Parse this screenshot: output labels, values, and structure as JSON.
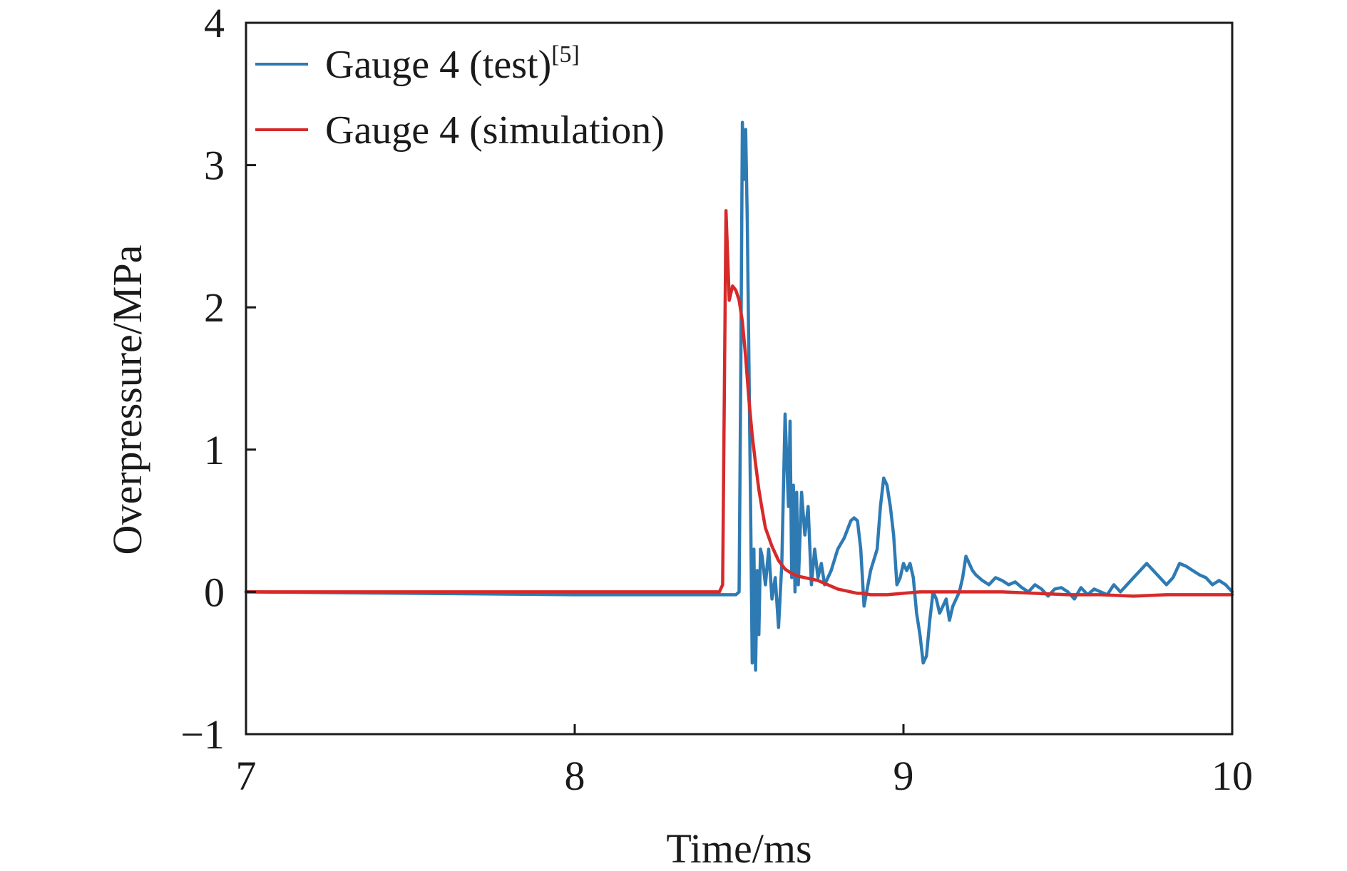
{
  "chart_data": {
    "type": "line",
    "xlabel": "Time/ms",
    "ylabel": "Overpressure/MPa",
    "xlim": [
      7,
      10
    ],
    "ylim": [
      -1,
      4
    ],
    "xticks": [
      7,
      8,
      9,
      10
    ],
    "xtick_labels": [
      "7",
      "8",
      "9",
      "10"
    ],
    "yticks": [
      -1,
      0,
      1,
      2,
      3,
      4
    ],
    "ytick_labels": [
      "−1",
      "0",
      "1",
      "2",
      "3",
      "4"
    ],
    "grid": false,
    "legend_position": "top-left",
    "series": [
      {
        "name": "Gauge 4 (test)",
        "name_superscript": "[5]",
        "color": "#2e7bb4",
        "x": [
          7.0,
          8.0,
          8.49,
          8.5,
          8.505,
          8.51,
          8.515,
          8.52,
          8.525,
          8.53,
          8.535,
          8.54,
          8.545,
          8.55,
          8.555,
          8.56,
          8.565,
          8.57,
          8.58,
          8.59,
          8.6,
          8.61,
          8.62,
          8.63,
          8.64,
          8.65,
          8.655,
          8.66,
          8.665,
          8.67,
          8.675,
          8.68,
          8.69,
          8.7,
          8.71,
          8.72,
          8.73,
          8.74,
          8.75,
          8.76,
          8.78,
          8.8,
          8.82,
          8.84,
          8.85,
          8.86,
          8.87,
          8.88,
          8.9,
          8.92,
          8.93,
          8.94,
          8.95,
          8.96,
          8.97,
          8.98,
          8.99,
          9.0,
          9.01,
          9.02,
          9.03,
          9.04,
          9.05,
          9.06,
          9.07,
          9.08,
          9.09,
          9.1,
          9.11,
          9.12,
          9.13,
          9.14,
          9.15,
          9.16,
          9.17,
          9.18,
          9.19,
          9.2,
          9.21,
          9.22,
          9.24,
          9.26,
          9.28,
          9.3,
          9.32,
          9.34,
          9.36,
          9.38,
          9.4,
          9.42,
          9.44,
          9.46,
          9.48,
          9.5,
          9.52,
          9.54,
          9.56,
          9.58,
          9.6,
          9.62,
          9.64,
          9.66,
          9.68,
          9.7,
          9.72,
          9.74,
          9.76,
          9.78,
          9.8,
          9.82,
          9.84,
          9.86,
          9.88,
          9.9,
          9.92,
          9.94,
          9.96,
          9.98,
          10.0
        ],
        "values": [
          0.0,
          -0.02,
          -0.02,
          0.0,
          1.5,
          3.3,
          2.9,
          3.25,
          2.6,
          1.6,
          0.6,
          -0.5,
          0.3,
          -0.55,
          0.15,
          -0.3,
          0.3,
          0.25,
          0.05,
          0.3,
          -0.05,
          0.1,
          -0.25,
          0.2,
          1.25,
          0.6,
          1.2,
          0.1,
          0.75,
          0.0,
          0.7,
          0.05,
          0.7,
          0.4,
          0.6,
          0.05,
          0.3,
          0.1,
          0.2,
          0.05,
          0.15,
          0.3,
          0.38,
          0.5,
          0.52,
          0.5,
          0.3,
          -0.1,
          0.15,
          0.3,
          0.6,
          0.8,
          0.75,
          0.6,
          0.4,
          0.05,
          0.1,
          0.2,
          0.15,
          0.2,
          0.1,
          -0.15,
          -0.3,
          -0.5,
          -0.45,
          -0.2,
          0.0,
          -0.05,
          -0.15,
          -0.1,
          -0.05,
          -0.2,
          -0.1,
          -0.05,
          0.0,
          0.1,
          0.25,
          0.2,
          0.15,
          0.12,
          0.08,
          0.05,
          0.1,
          0.08,
          0.05,
          0.07,
          0.03,
          0.0,
          0.05,
          0.02,
          -0.03,
          0.02,
          0.03,
          0.0,
          -0.05,
          0.03,
          -0.02,
          0.02,
          0.0,
          -0.02,
          0.05,
          0.0,
          0.05,
          0.1,
          0.15,
          0.2,
          0.15,
          0.1,
          0.05,
          0.1,
          0.2,
          0.18,
          0.15,
          0.12,
          0.1,
          0.05,
          0.08,
          0.05,
          0.0
        ]
      },
      {
        "name": "Gauge 4 (simulation)",
        "color": "#d62a2a",
        "x": [
          7.0,
          8.0,
          8.44,
          8.45,
          8.46,
          8.47,
          8.48,
          8.49,
          8.5,
          8.51,
          8.52,
          8.53,
          8.54,
          8.55,
          8.56,
          8.57,
          8.58,
          8.6,
          8.62,
          8.64,
          8.66,
          8.68,
          8.7,
          8.72,
          8.74,
          8.76,
          8.78,
          8.8,
          8.82,
          8.84,
          8.86,
          8.88,
          8.9,
          8.92,
          8.95,
          9.0,
          9.05,
          9.1,
          9.15,
          9.2,
          9.3,
          9.4,
          9.5,
          9.6,
          9.7,
          9.8,
          9.9,
          10.0
        ],
        "values": [
          0.0,
          0.0,
          0.0,
          0.05,
          2.68,
          2.05,
          2.15,
          2.12,
          2.05,
          1.9,
          1.65,
          1.35,
          1.1,
          0.9,
          0.72,
          0.58,
          0.45,
          0.32,
          0.22,
          0.16,
          0.13,
          0.11,
          0.1,
          0.09,
          0.08,
          0.06,
          0.04,
          0.02,
          0.01,
          0.0,
          -0.01,
          -0.01,
          -0.02,
          -0.02,
          -0.02,
          -0.01,
          0.0,
          0.0,
          0.0,
          0.0,
          0.0,
          -0.01,
          -0.02,
          -0.02,
          -0.03,
          -0.02,
          -0.02,
          -0.02
        ]
      }
    ]
  }
}
